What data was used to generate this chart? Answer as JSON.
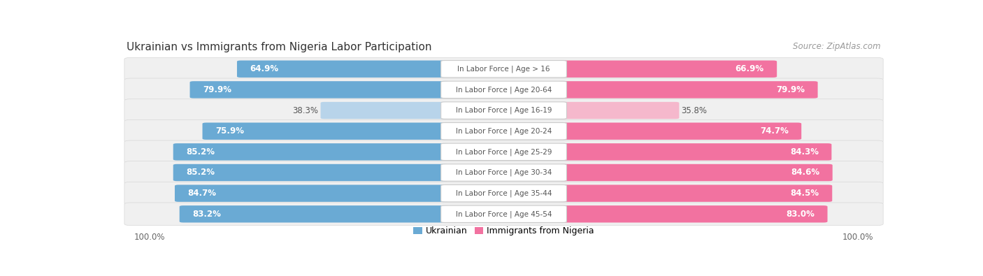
{
  "title": "Ukrainian vs Immigrants from Nigeria Labor Participation",
  "source": "Source: ZipAtlas.com",
  "categories": [
    "In Labor Force | Age > 16",
    "In Labor Force | Age 20-64",
    "In Labor Force | Age 16-19",
    "In Labor Force | Age 20-24",
    "In Labor Force | Age 25-29",
    "In Labor Force | Age 30-34",
    "In Labor Force | Age 35-44",
    "In Labor Force | Age 45-54"
  ],
  "ukrainian_values": [
    64.9,
    79.9,
    38.3,
    75.9,
    85.2,
    85.2,
    84.7,
    83.2
  ],
  "nigeria_values": [
    66.9,
    79.9,
    35.8,
    74.7,
    84.3,
    84.6,
    84.5,
    83.0
  ],
  "ukrainian_color": "#6aaad4",
  "ukraine_light_color": "#b8d4ea",
  "nigeria_color": "#f272a0",
  "nigeria_light_color": "#f5b8cc",
  "row_bg_color": "#f0f0f0",
  "row_separator_color": "#e0e0e0",
  "label_white": "#ffffff",
  "label_dark": "#555555",
  "center_label_color": "#555555",
  "max_val": 100.0,
  "legend_ukrainian": "Ukrainian",
  "legend_nigeria": "Immigrants from Nigeria",
  "title_fontsize": 11,
  "source_fontsize": 8.5,
  "bar_label_fontsize": 8.5,
  "category_fontsize": 7.5,
  "footer_label": "100.0%",
  "threshold": 60
}
